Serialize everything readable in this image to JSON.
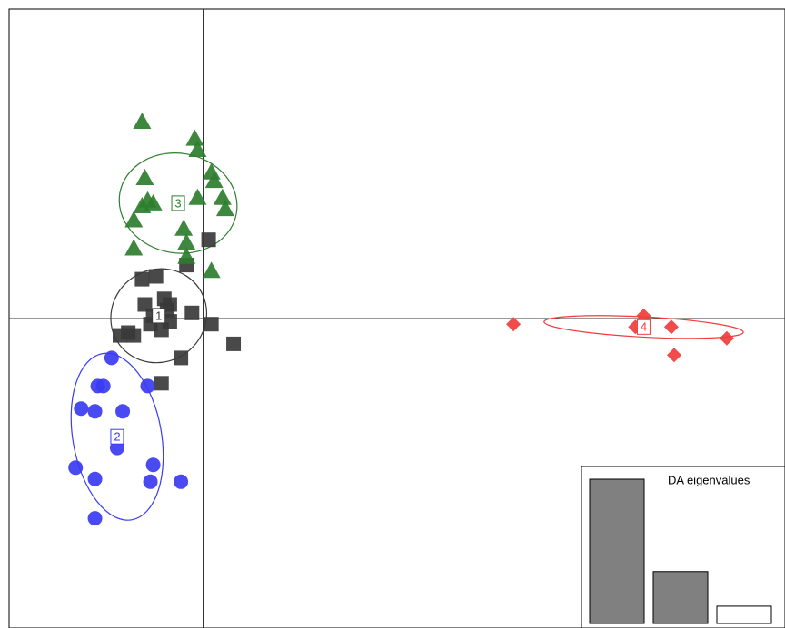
{
  "chart_data": {
    "type": "scatter",
    "xlim": [
      -3.5,
      10.5
    ],
    "ylim": [
      -5.5,
      5.5
    ],
    "axes_lines_at": {
      "x": 0,
      "y": 0
    },
    "groups": [
      {
        "label": "1",
        "color": "#3a3a3a",
        "marker": "square",
        "center": [
          -0.8,
          0.05
        ],
        "ellipse": {
          "rx": 0.88,
          "ry": 0.82,
          "angle": 35
        },
        "points": [
          [
            -1.1,
            0.7
          ],
          [
            -0.85,
            0.75
          ],
          [
            -0.7,
            0.35
          ],
          [
            -1.05,
            0.25
          ],
          [
            -0.9,
            0.05
          ],
          [
            -0.65,
            0.15
          ],
          [
            -0.6,
            -0.05
          ],
          [
            -1.35,
            -0.25
          ],
          [
            -1.25,
            -0.3
          ],
          [
            -0.95,
            -0.1
          ],
          [
            -0.2,
            0.1
          ],
          [
            0.15,
            -0.1
          ],
          [
            0.55,
            -0.45
          ],
          [
            -0.4,
            -0.7
          ],
          [
            -0.75,
            -1.15
          ],
          [
            -0.3,
            0.95
          ],
          [
            0.1,
            1.4
          ],
          [
            -0.6,
            0.25
          ],
          [
            -1.5,
            -0.3
          ],
          [
            -0.75,
            -0.2
          ]
        ]
      },
      {
        "label": "2",
        "color": "#3b3bf2",
        "marker": "circle",
        "center": [
          -1.55,
          -2.1
        ],
        "ellipse": {
          "rx": 0.8,
          "ry": 1.5,
          "angle": 10
        },
        "points": [
          [
            -1.65,
            -0.7
          ],
          [
            -1.9,
            -1.2
          ],
          [
            -1.8,
            -1.2
          ],
          [
            -2.2,
            -1.6
          ],
          [
            -1.95,
            -1.65
          ],
          [
            -1.45,
            -1.65
          ],
          [
            -1.0,
            -1.2
          ],
          [
            -1.55,
            -2.3
          ],
          [
            -2.3,
            -2.65
          ],
          [
            -1.95,
            -2.85
          ],
          [
            -0.9,
            -2.6
          ],
          [
            -0.95,
            -2.9
          ],
          [
            -0.4,
            -2.9
          ],
          [
            -1.95,
            -3.55
          ]
        ]
      },
      {
        "label": "3",
        "color": "#2e7d2e",
        "marker": "triangle",
        "center": [
          -0.45,
          2.05
        ],
        "ellipse": {
          "rx": 0.9,
          "ry": 1.05,
          "angle": 80
        },
        "points": [
          [
            -1.1,
            3.5
          ],
          [
            -0.15,
            3.2
          ],
          [
            -0.1,
            3.0
          ],
          [
            -1.05,
            2.5
          ],
          [
            0.15,
            2.6
          ],
          [
            0.2,
            2.45
          ],
          [
            0.35,
            2.15
          ],
          [
            0.4,
            1.95
          ],
          [
            -0.1,
            2.15
          ],
          [
            -1.1,
            2.0
          ],
          [
            -1.0,
            2.1
          ],
          [
            -0.9,
            2.05
          ],
          [
            -1.25,
            1.75
          ],
          [
            -0.35,
            1.6
          ],
          [
            -0.3,
            1.35
          ],
          [
            -0.3,
            1.1
          ],
          [
            -1.25,
            1.25
          ],
          [
            0.15,
            0.85
          ]
        ]
      },
      {
        "label": "4",
        "color": "#f03c3c",
        "marker": "diamond",
        "center": [
          7.95,
          -0.15
        ],
        "ellipse": {
          "rx": 1.8,
          "ry": 0.18,
          "angle": -3
        },
        "points": [
          [
            5.6,
            -0.1
          ],
          [
            7.95,
            0.05
          ],
          [
            8.45,
            -0.15
          ],
          [
            7.8,
            -0.15
          ],
          [
            9.45,
            -0.35
          ],
          [
            8.5,
            -0.65
          ]
        ]
      }
    ],
    "inset": {
      "title": "DA eigenvalues",
      "values": [
        100,
        36,
        12
      ],
      "fills": [
        "#808080",
        "#808080",
        "#ffffff"
      ]
    }
  }
}
